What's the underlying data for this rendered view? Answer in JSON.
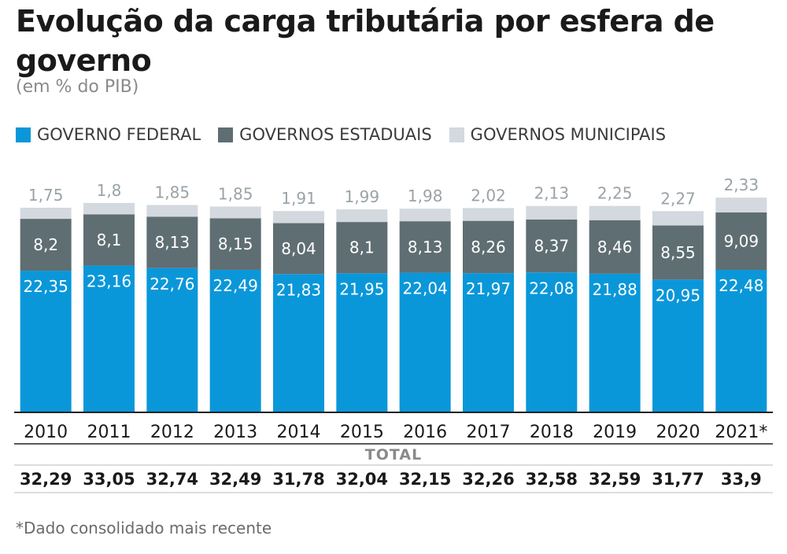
{
  "title": "Evolução da carga tributária por esfera de governo",
  "subtitle": "(em % do PIB)",
  "legend": [
    {
      "label": "GOVERNO FEDERAL",
      "color": "#0a97d9"
    },
    {
      "label": "GOVERNOS ESTADUAIS",
      "color": "#5f6e73"
    },
    {
      "label": "GOVERNOS MUNICIPAIS",
      "color": "#d3d9de"
    }
  ],
  "chart_data": {
    "type": "bar",
    "stacked": true,
    "title": "Evolução da carga tributária por esfera de governo",
    "ylabel": "% do PIB",
    "categories": [
      "2010",
      "2011",
      "2012",
      "2013",
      "2014",
      "2015",
      "2016",
      "2017",
      "2018",
      "2019",
      "2020",
      "2021*"
    ],
    "series": [
      {
        "name": "GOVERNO FEDERAL",
        "color": "#0a97d9",
        "labels": [
          "22,35",
          "23,16",
          "22,76",
          "22,49",
          "21,83",
          "21,95",
          "22,04",
          "21,97",
          "22,08",
          "21,88",
          "20,95",
          "22,48"
        ],
        "values": [
          22.35,
          23.16,
          22.76,
          22.49,
          21.83,
          21.95,
          22.04,
          21.97,
          22.08,
          21.88,
          20.95,
          22.48
        ]
      },
      {
        "name": "GOVERNOS ESTADUAIS",
        "color": "#5f6e73",
        "labels": [
          "8,2",
          "8,1",
          "8,13",
          "8,15",
          "8,04",
          "8,1",
          "8,13",
          "8,26",
          "8,37",
          "8,46",
          "8,55",
          "9,09"
        ],
        "values": [
          8.2,
          8.1,
          8.13,
          8.15,
          8.04,
          8.1,
          8.13,
          8.26,
          8.37,
          8.46,
          8.55,
          9.09
        ]
      },
      {
        "name": "GOVERNOS MUNICIPAIS",
        "color": "#d3d9de",
        "labels": [
          "1,75",
          "1,8",
          "1,85",
          "1,85",
          "1,91",
          "1,99",
          "1,98",
          "2,02",
          "2,13",
          "2,25",
          "2,27",
          "2,33"
        ],
        "values": [
          1.75,
          1.8,
          1.85,
          1.85,
          1.91,
          1.99,
          1.98,
          2.02,
          2.13,
          2.25,
          2.27,
          2.33
        ]
      }
    ],
    "total_label": "TOTAL",
    "totals": [
      "32,29",
      "33,05",
      "32,74",
      "32,49",
      "31,78",
      "32,04",
      "32,15",
      "32,26",
      "32,58",
      "32,59",
      "31,77",
      "33,9"
    ],
    "ylim": [
      0,
      34
    ]
  },
  "footnote": "*Dado consolidado mais recente"
}
